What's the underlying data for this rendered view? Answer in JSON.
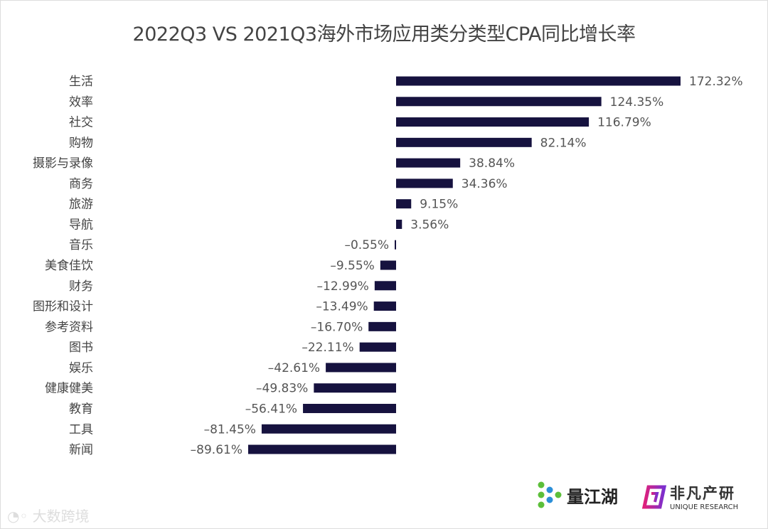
{
  "chart_data": {
    "type": "bar",
    "orientation": "horizontal",
    "title": "2022Q3 VS 2021Q3海外市场应用类分类型CPA同比增长率",
    "categories": [
      "生活",
      "效率",
      "社交",
      "购物",
      "摄影与录像",
      "商务",
      "旅游",
      "导航",
      "音乐",
      "美食佳饮",
      "财务",
      "图形和设计",
      "参考资料",
      "图书",
      "娱乐",
      "健康健美",
      "教育",
      "工具",
      "新闻"
    ],
    "values": [
      172.32,
      124.35,
      116.79,
      82.14,
      38.84,
      34.36,
      9.15,
      3.56,
      -0.55,
      -9.55,
      -12.99,
      -13.49,
      -16.7,
      -22.11,
      -42.61,
      -49.83,
      -56.41,
      -81.45,
      -89.61
    ],
    "data_labels": [
      "172.32%",
      "124.35%",
      "116.79%",
      "82.14%",
      "38.84%",
      "34.36%",
      "9.15%",
      "3.56%",
      "–0.55%",
      "–9.55%",
      "–12.99%",
      "–13.49%",
      "–16.70%",
      "–22.11%",
      "–42.61%",
      "–49.83%",
      "–56.41%",
      "–81.45%",
      "–89.61%"
    ],
    "unit": "%",
    "grid": false,
    "legend": "none",
    "bar_color": "#16123f"
  },
  "logos": {
    "left": "量江湖",
    "right_cn": "非凡产研",
    "right_en": "UNIQUE RESEARCH",
    "watermark": "大数跨境"
  }
}
